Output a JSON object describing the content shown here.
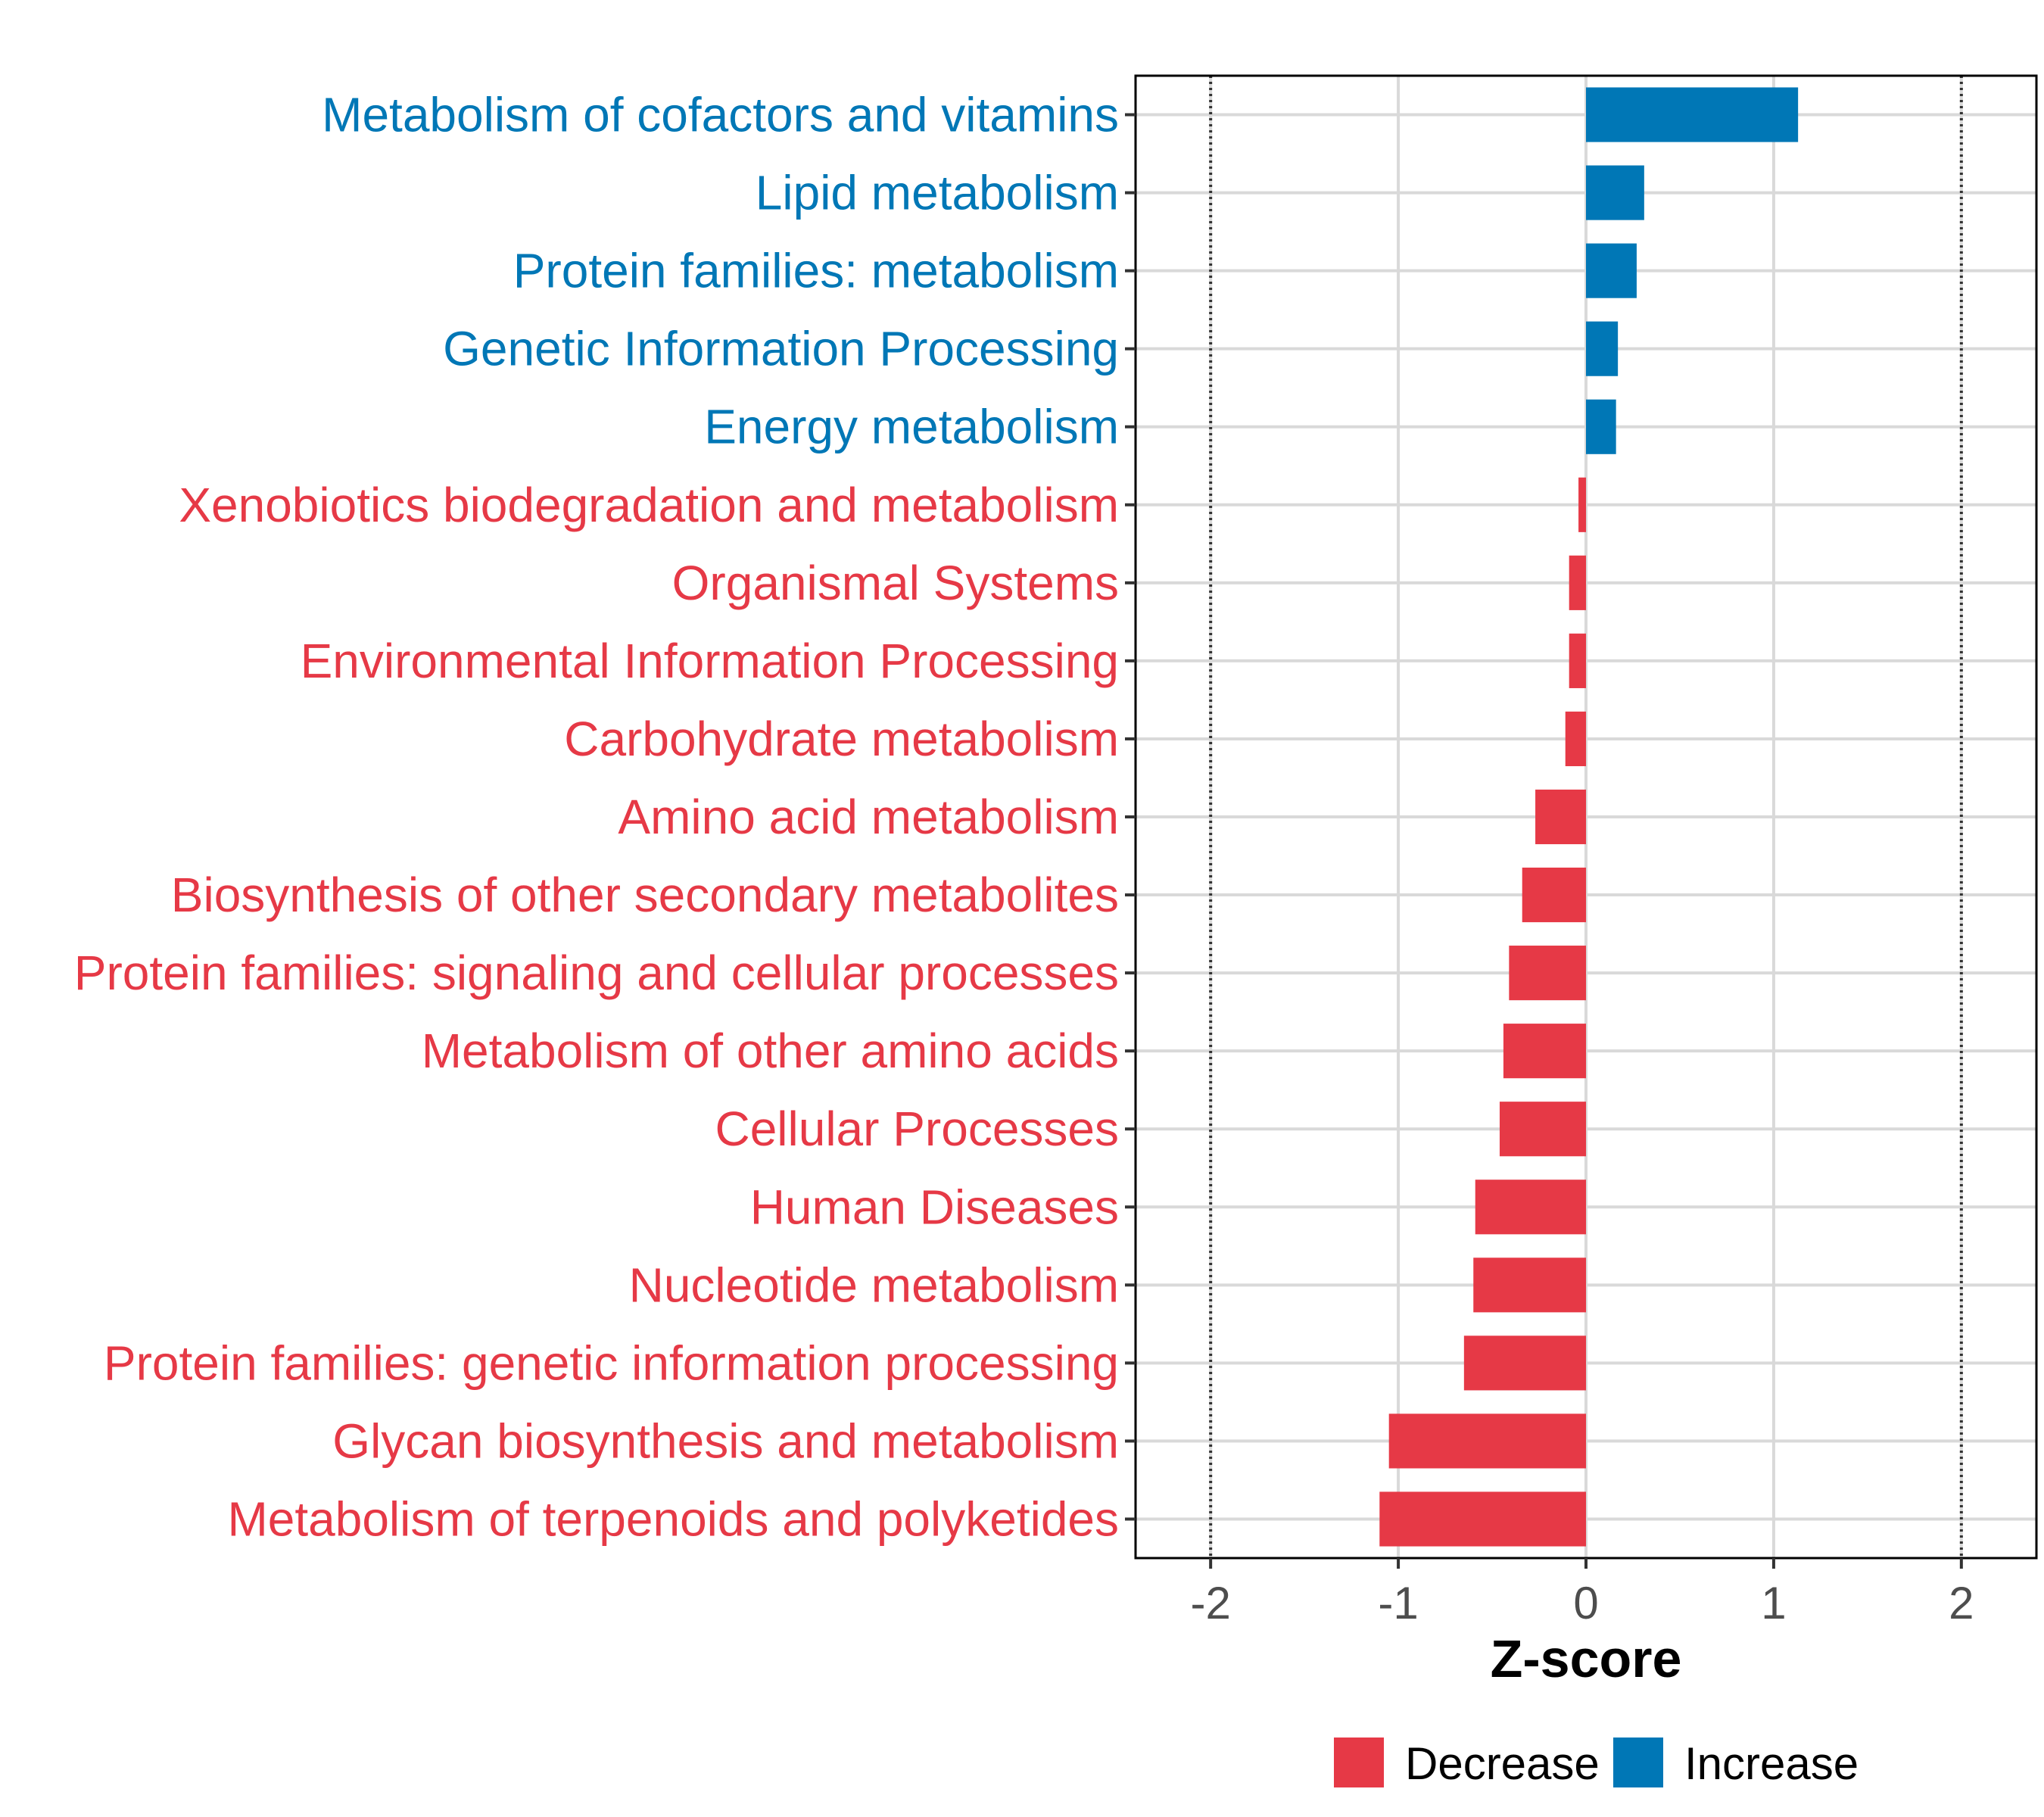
{
  "chart_data": {
    "type": "bar",
    "orientation": "horizontal",
    "xlabel": "Z-score",
    "xlim": [
      -2.4,
      2.4
    ],
    "xticks": [
      "-2",
      "-1",
      "0",
      "1",
      "2"
    ],
    "xtick_values": [
      -2,
      -1,
      0,
      1,
      2
    ],
    "reference_lines": [
      -2,
      2
    ],
    "grid": true,
    "categories": [
      "Metabolism of cofactors and vitamins",
      "Lipid metabolism",
      "Protein families: metabolism",
      "Genetic Information Processing",
      "Energy metabolism",
      "Xenobiotics biodegradation and metabolism",
      "Organismal Systems",
      "Environmental Information Processing",
      "Carbohydrate metabolism",
      "Amino acid metabolism",
      "Biosynthesis of other secondary metabolites",
      "Protein families: signaling and cellular processes",
      "Metabolism of other amino acids",
      "Cellular Processes",
      "Human Diseases",
      "Nucleotide metabolism",
      "Protein families: genetic information processing",
      "Glycan biosynthesis and metabolism",
      "Metabolism of terpenoids and polyketides"
    ],
    "values": [
      1.13,
      0.31,
      0.27,
      0.17,
      0.16,
      -0.04,
      -0.09,
      -0.09,
      -0.11,
      -0.27,
      -0.34,
      -0.41,
      -0.44,
      -0.46,
      -0.59,
      -0.6,
      -0.65,
      -1.05,
      -1.1
    ],
    "groups": [
      "Increase",
      "Increase",
      "Increase",
      "Increase",
      "Increase",
      "Decrease",
      "Decrease",
      "Decrease",
      "Decrease",
      "Decrease",
      "Decrease",
      "Decrease",
      "Decrease",
      "Decrease",
      "Decrease",
      "Decrease",
      "Decrease",
      "Decrease",
      "Decrease"
    ],
    "legend": {
      "position": "bottom",
      "items": [
        {
          "label": "Decrease",
          "color": "#e63946"
        },
        {
          "label": "Increase",
          "color": "#0077b6"
        }
      ]
    }
  }
}
